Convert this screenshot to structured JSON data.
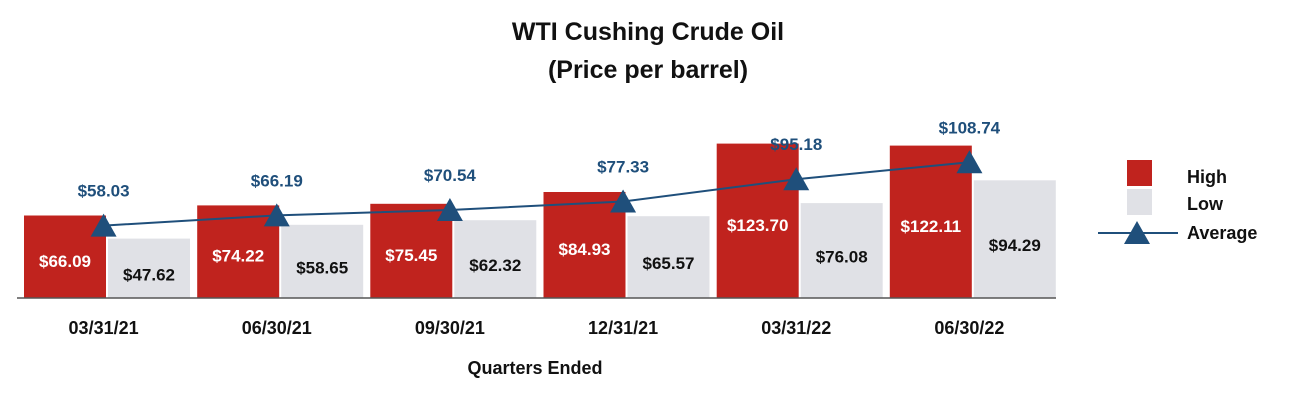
{
  "chart_data": {
    "type": "bar",
    "title": "WTI Cushing Crude Oil",
    "subtitle": "(Price per barrel)",
    "xlabel": "Quarters Ended",
    "ylabel": "",
    "categories": [
      "03/31/21",
      "06/30/21",
      "09/30/21",
      "12/31/21",
      "03/31/22",
      "06/30/22"
    ],
    "series": [
      {
        "name": "High",
        "kind": "bar",
        "color": "#c0231e",
        "values": [
          66.09,
          74.22,
          75.45,
          84.93,
          123.7,
          122.11
        ],
        "labels": [
          "$66.09",
          "$74.22",
          "$75.45",
          "$84.93",
          "$123.70",
          "$122.11"
        ]
      },
      {
        "name": "Low",
        "kind": "bar",
        "color": "#e0e1e6",
        "values": [
          47.62,
          58.65,
          62.32,
          65.57,
          76.08,
          94.29
        ],
        "labels": [
          "$47.62",
          "$58.65",
          "$62.32",
          "$65.57",
          "$76.08",
          "$94.29"
        ]
      },
      {
        "name": "Average",
        "kind": "line",
        "color": "#1f4f7b",
        "values": [
          58.03,
          66.19,
          70.54,
          77.33,
          95.18,
          108.74
        ],
        "labels": [
          "$58.03",
          "$66.19",
          "$70.54",
          "$77.33",
          "$95.18",
          "$108.74"
        ]
      }
    ],
    "ylim": [
      0,
      125
    ],
    "grid": false,
    "legend_position": "right"
  }
}
